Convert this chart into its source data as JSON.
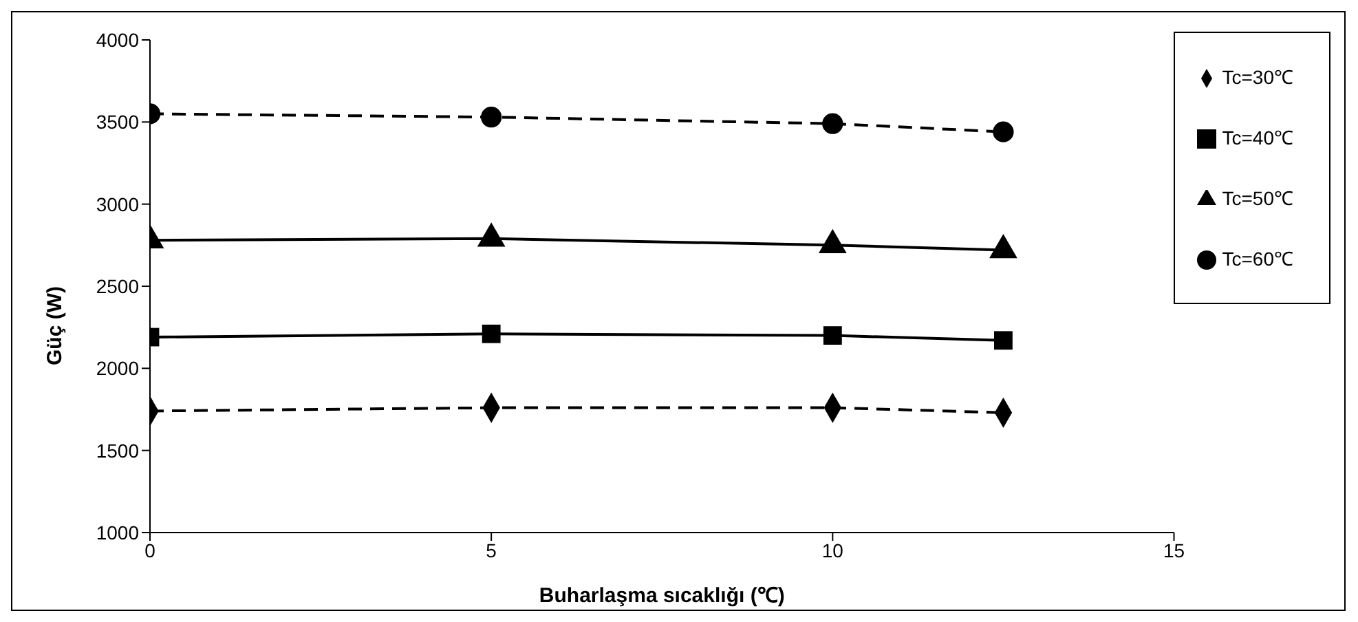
{
  "chart_data": {
    "type": "line",
    "xlabel": "Buharlaşma sıcaklığı (℃)",
    "ylabel": "Güç (W)",
    "x": [
      0,
      5,
      10,
      12.5
    ],
    "xlim": [
      0,
      15
    ],
    "xticks": [
      0,
      5,
      10,
      15
    ],
    "ylim": [
      1000,
      4000
    ],
    "yticks": [
      1000,
      1500,
      2000,
      2500,
      3000,
      3500,
      4000
    ],
    "grid": false,
    "legend": "right",
    "series": [
      {
        "name": "Tc=30℃",
        "color": "#000000",
        "marker": "diamond",
        "line_style": "dashed",
        "values": [
          1740,
          1760,
          1760,
          1730
        ]
      },
      {
        "name": "Tc=40℃",
        "color": "#000000",
        "marker": "square",
        "line_style": "solid",
        "values": [
          2190,
          2210,
          2200,
          2170
        ]
      },
      {
        "name": "Tc=50℃",
        "color": "#000000",
        "marker": "triangle",
        "line_style": "solid",
        "values": [
          2780,
          2790,
          2750,
          2720
        ]
      },
      {
        "name": "Tc=60℃",
        "color": "#000000",
        "marker": "circle",
        "line_style": "dashed",
        "values": [
          3550,
          3530,
          3490,
          3440
        ]
      }
    ]
  }
}
